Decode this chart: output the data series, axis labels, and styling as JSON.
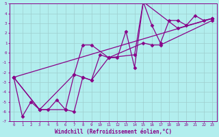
{
  "xlabel": "Windchill (Refroidissement éolien,°C)",
  "bg_color": "#b2eeee",
  "line_color": "#880088",
  "marker": "D",
  "markersize": 2.5,
  "linewidth": 0.9,
  "xlim": [
    -0.5,
    23.5
  ],
  "ylim": [
    -7,
    5
  ],
  "xticks": [
    0,
    1,
    2,
    3,
    4,
    5,
    6,
    7,
    8,
    9,
    10,
    11,
    12,
    13,
    14,
    15,
    16,
    17,
    18,
    19,
    20,
    21,
    22,
    23
  ],
  "yticks": [
    -7,
    -6,
    -5,
    -4,
    -3,
    -2,
    -1,
    0,
    1,
    2,
    3,
    4,
    5
  ],
  "grid_color": "#9ecece",
  "line1_x": [
    0,
    1,
    2,
    3,
    4,
    5,
    6,
    7,
    8,
    9,
    10,
    11,
    12,
    13,
    14,
    15,
    16,
    17,
    18,
    19,
    20,
    21,
    22,
    23
  ],
  "line1_y": [
    -2.5,
    -6.5,
    -5.0,
    -5.8,
    -5.8,
    -4.8,
    -5.8,
    -6.0,
    -2.5,
    -2.8,
    -0.2,
    -0.5,
    -0.5,
    2.2,
    -1.5,
    5.2,
    2.8,
    1.0,
    3.3,
    3.3,
    2.8,
    3.8,
    3.3,
    3.5
  ],
  "line2_x": [
    0,
    3,
    6,
    7,
    8,
    9,
    11,
    15,
    16,
    17,
    23
  ],
  "line2_y": [
    -2.5,
    -5.8,
    -5.8,
    -2.2,
    -2.5,
    -2.8,
    -0.5,
    1.0,
    0.8,
    0.8,
    3.3
  ],
  "line3_x": [
    0,
    3,
    7,
    8,
    9,
    11,
    14,
    15,
    19,
    23
  ],
  "line3_y": [
    -2.5,
    -5.8,
    -2.2,
    0.8,
    0.8,
    -0.5,
    -0.2,
    5.2,
    2.5,
    3.5
  ],
  "line4_x": [
    0,
    23
  ],
  "line4_y": [
    -2.5,
    3.5
  ]
}
